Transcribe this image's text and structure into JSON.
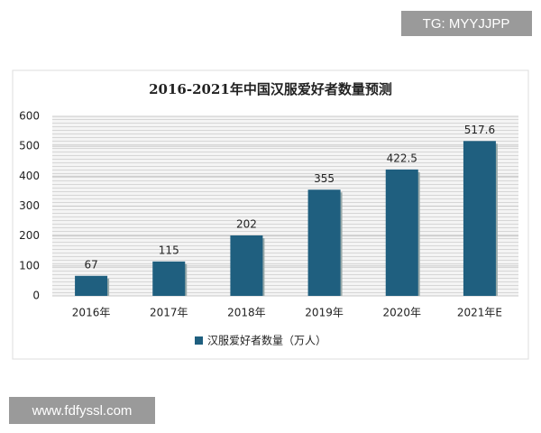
{
  "chart_data": {
    "type": "bar",
    "title": "2016-2021年中国汉服爱好者数量预测",
    "categories": [
      "2016年",
      "2017年",
      "2018年",
      "2019年",
      "2020年",
      "2021年E"
    ],
    "series": [
      {
        "name": "汉服爱好者数量（万人）",
        "color": "#1f5f7f",
        "values": [
          67,
          115,
          202,
          355,
          422.5,
          517.6
        ]
      }
    ],
    "ylim": [
      0,
      600
    ],
    "yticks": [
      0,
      100,
      200,
      300,
      400,
      500,
      600
    ],
    "grid": true,
    "legend": "bottom"
  },
  "watermarks": {
    "top_right": "TG: MYYJJPP",
    "bottom_left": "www.fdfyssl.com"
  }
}
